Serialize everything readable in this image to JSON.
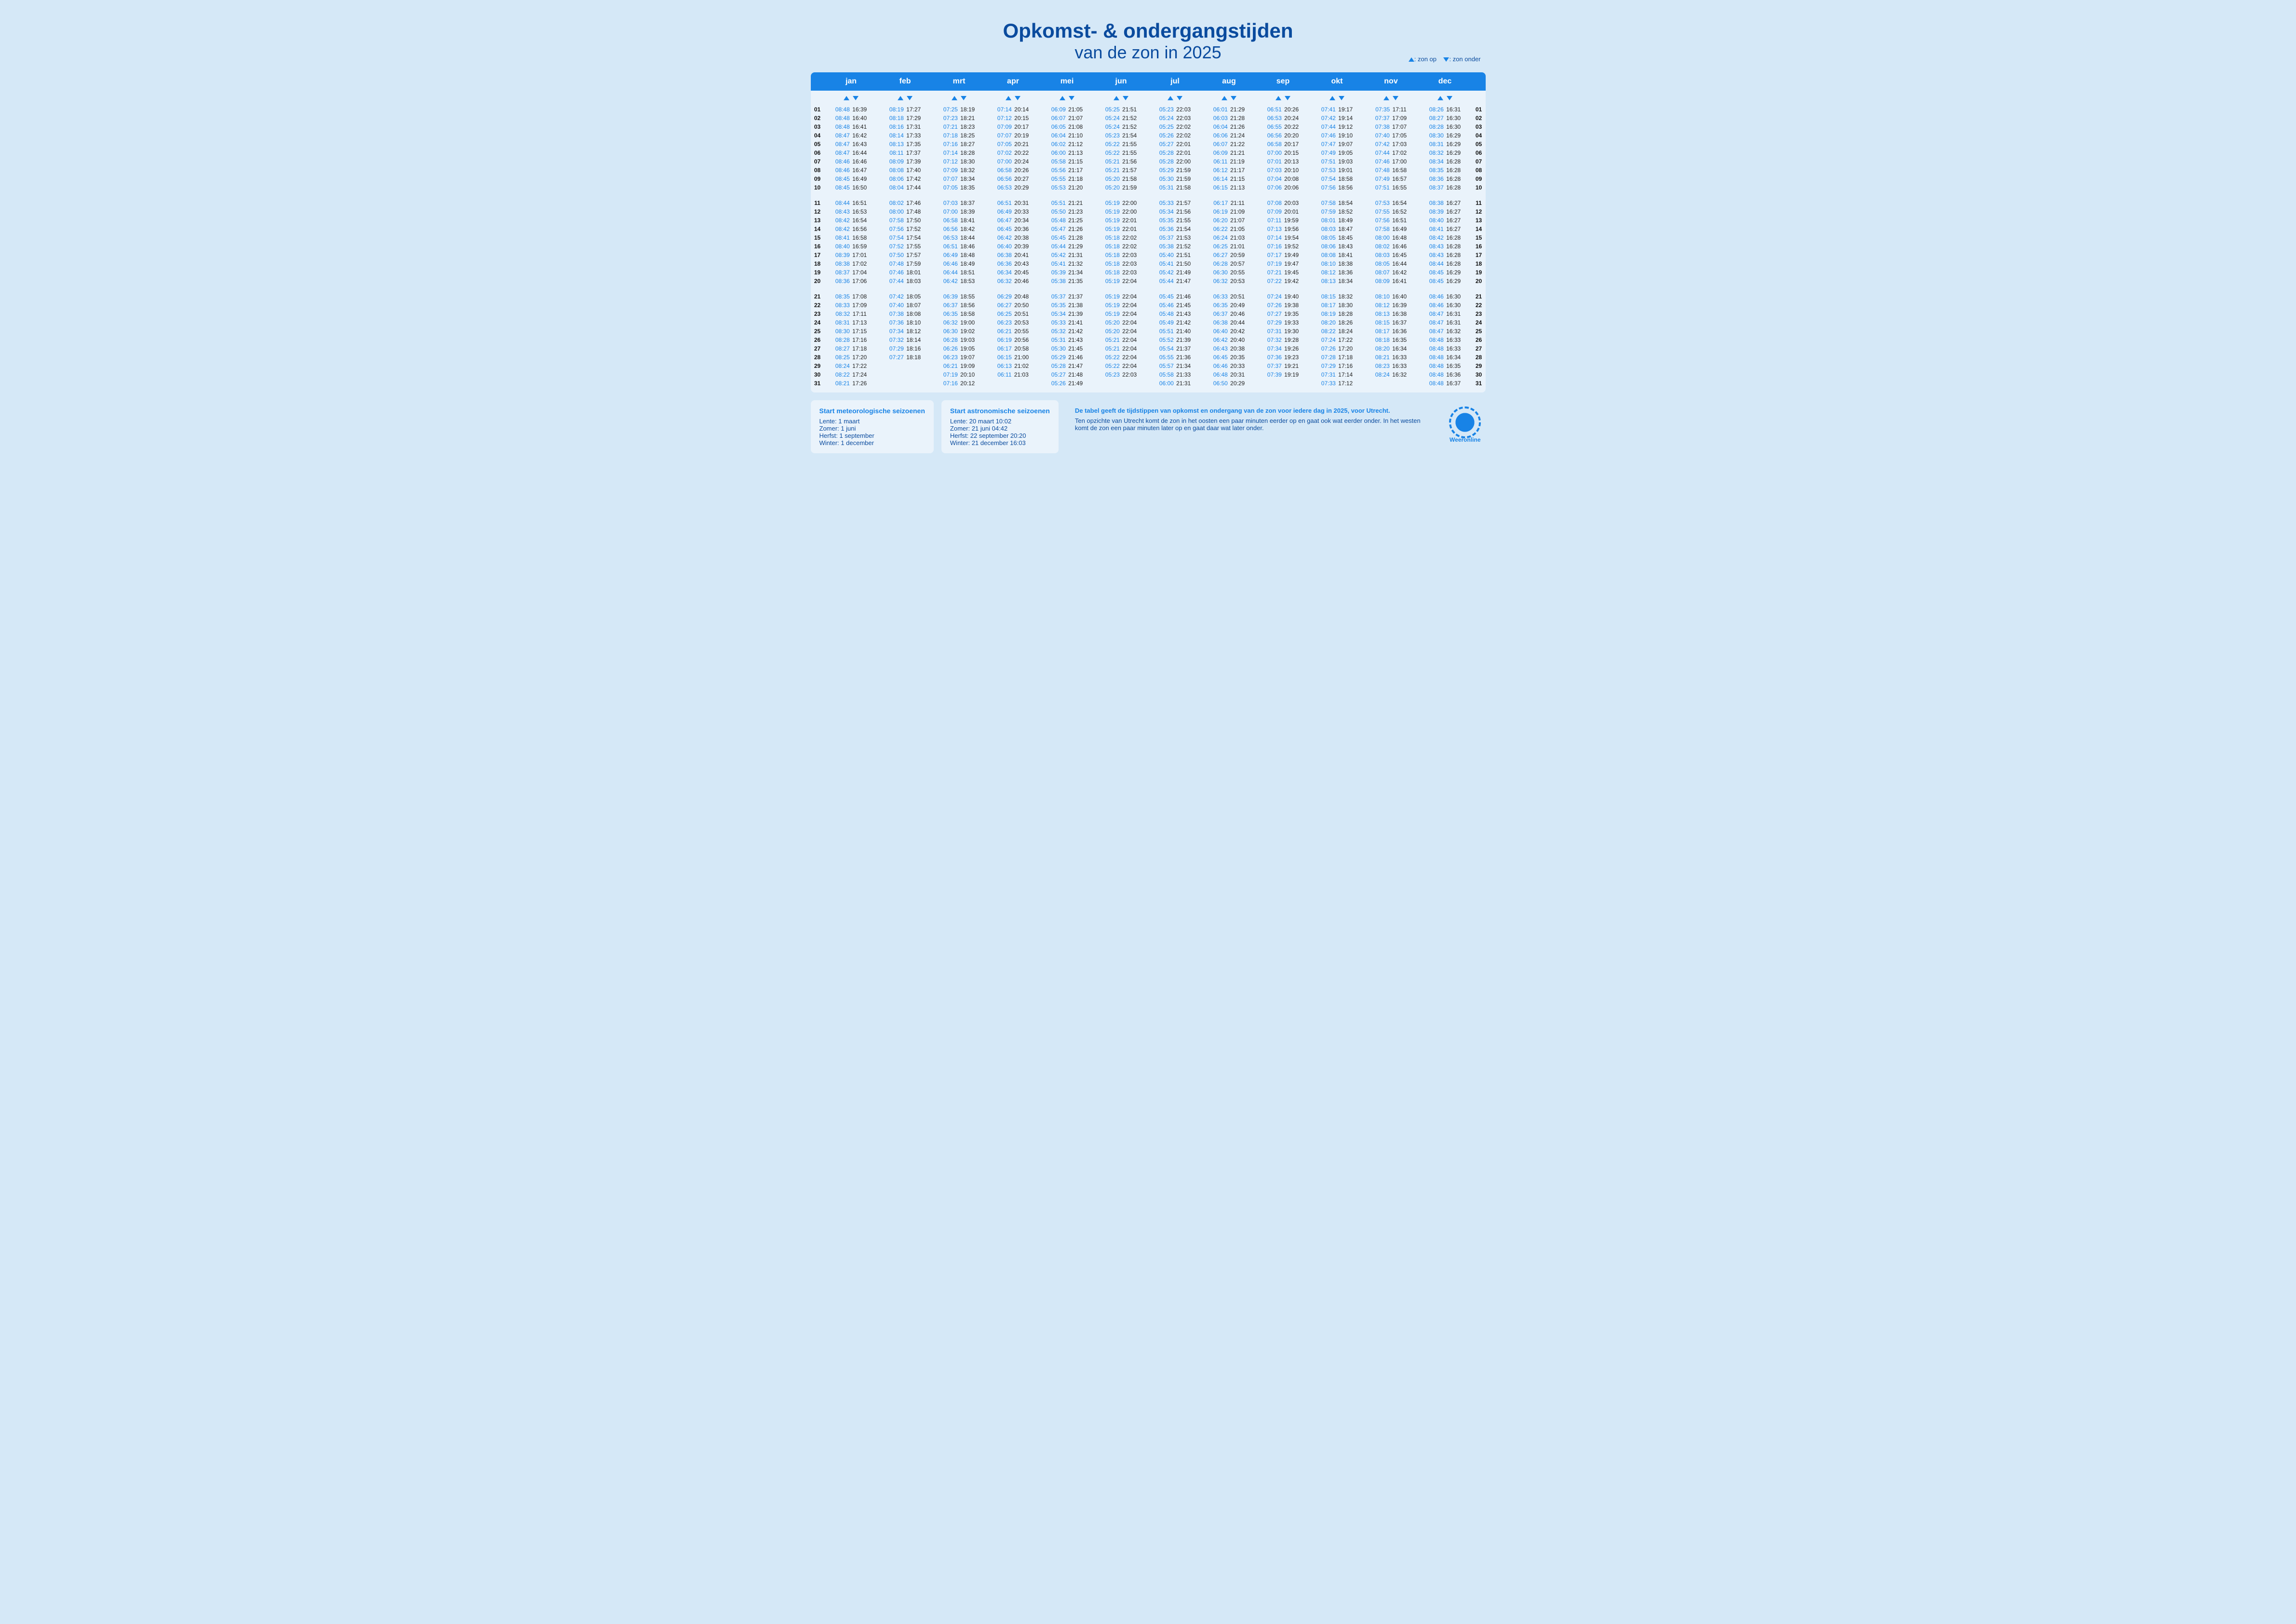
{
  "title_bold": "Opkomst- & ondergangstijden",
  "title_light": "van de zon in 2025",
  "legend_up": ": zon op",
  "legend_dn": ": zon onder",
  "months": [
    "jan",
    "feb",
    "mrt",
    "apr",
    "mei",
    "jun",
    "jul",
    "aug",
    "sep",
    "okt",
    "nov",
    "dec"
  ],
  "data": {
    "jan": [
      [
        "08:48",
        "16:39"
      ],
      [
        "08:48",
        "16:40"
      ],
      [
        "08:48",
        "16:41"
      ],
      [
        "08:47",
        "16:42"
      ],
      [
        "08:47",
        "16:43"
      ],
      [
        "08:47",
        "16:44"
      ],
      [
        "08:46",
        "16:46"
      ],
      [
        "08:46",
        "16:47"
      ],
      [
        "08:45",
        "16:49"
      ],
      [
        "08:45",
        "16:50"
      ],
      [
        "08:44",
        "16:51"
      ],
      [
        "08:43",
        "16:53"
      ],
      [
        "08:42",
        "16:54"
      ],
      [
        "08:42",
        "16:56"
      ],
      [
        "08:41",
        "16:58"
      ],
      [
        "08:40",
        "16:59"
      ],
      [
        "08:39",
        "17:01"
      ],
      [
        "08:38",
        "17:02"
      ],
      [
        "08:37",
        "17:04"
      ],
      [
        "08:36",
        "17:06"
      ],
      [
        "08:35",
        "17:08"
      ],
      [
        "08:33",
        "17:09"
      ],
      [
        "08:32",
        "17:11"
      ],
      [
        "08:31",
        "17:13"
      ],
      [
        "08:30",
        "17:15"
      ],
      [
        "08:28",
        "17:16"
      ],
      [
        "08:27",
        "17:18"
      ],
      [
        "08:25",
        "17:20"
      ],
      [
        "08:24",
        "17:22"
      ],
      [
        "08:22",
        "17:24"
      ],
      [
        "08:21",
        "17:26"
      ]
    ],
    "feb": [
      [
        "08:19",
        "17:27"
      ],
      [
        "08:18",
        "17:29"
      ],
      [
        "08:16",
        "17:31"
      ],
      [
        "08:14",
        "17:33"
      ],
      [
        "08:13",
        "17:35"
      ],
      [
        "08:11",
        "17:37"
      ],
      [
        "08:09",
        "17:39"
      ],
      [
        "08:08",
        "17:40"
      ],
      [
        "08:06",
        "17:42"
      ],
      [
        "08:04",
        "17:44"
      ],
      [
        "08:02",
        "17:46"
      ],
      [
        "08:00",
        "17:48"
      ],
      [
        "07:58",
        "17:50"
      ],
      [
        "07:56",
        "17:52"
      ],
      [
        "07:54",
        "17:54"
      ],
      [
        "07:52",
        "17:55"
      ],
      [
        "07:50",
        "17:57"
      ],
      [
        "07:48",
        "17:59"
      ],
      [
        "07:46",
        "18:01"
      ],
      [
        "07:44",
        "18:03"
      ],
      [
        "07:42",
        "18:05"
      ],
      [
        "07:40",
        "18:07"
      ],
      [
        "07:38",
        "18:08"
      ],
      [
        "07:36",
        "18:10"
      ],
      [
        "07:34",
        "18:12"
      ],
      [
        "07:32",
        "18:14"
      ],
      [
        "07:29",
        "18:16"
      ],
      [
        "07:27",
        "18:18"
      ]
    ],
    "mrt": [
      [
        "07:25",
        "18:19"
      ],
      [
        "07:23",
        "18:21"
      ],
      [
        "07:21",
        "18:23"
      ],
      [
        "07:18",
        "18:25"
      ],
      [
        "07:16",
        "18:27"
      ],
      [
        "07:14",
        "18:28"
      ],
      [
        "07:12",
        "18:30"
      ],
      [
        "07:09",
        "18:32"
      ],
      [
        "07:07",
        "18:34"
      ],
      [
        "07:05",
        "18:35"
      ],
      [
        "07:03",
        "18:37"
      ],
      [
        "07:00",
        "18:39"
      ],
      [
        "06:58",
        "18:41"
      ],
      [
        "06:56",
        "18:42"
      ],
      [
        "06:53",
        "18:44"
      ],
      [
        "06:51",
        "18:46"
      ],
      [
        "06:49",
        "18:48"
      ],
      [
        "06:46",
        "18:49"
      ],
      [
        "06:44",
        "18:51"
      ],
      [
        "06:42",
        "18:53"
      ],
      [
        "06:39",
        "18:55"
      ],
      [
        "06:37",
        "18:56"
      ],
      [
        "06:35",
        "18:58"
      ],
      [
        "06:32",
        "19:00"
      ],
      [
        "06:30",
        "19:02"
      ],
      [
        "06:28",
        "19:03"
      ],
      [
        "06:26",
        "19:05"
      ],
      [
        "06:23",
        "19:07"
      ],
      [
        "06:21",
        "19:09"
      ],
      [
        "07:19",
        "20:10"
      ],
      [
        "07:16",
        "20:12"
      ]
    ],
    "apr": [
      [
        "07:14",
        "20:14"
      ],
      [
        "07:12",
        "20:15"
      ],
      [
        "07:09",
        "20:17"
      ],
      [
        "07:07",
        "20:19"
      ],
      [
        "07:05",
        "20:21"
      ],
      [
        "07:02",
        "20:22"
      ],
      [
        "07:00",
        "20:24"
      ],
      [
        "06:58",
        "20:26"
      ],
      [
        "06:56",
        "20:27"
      ],
      [
        "06:53",
        "20:29"
      ],
      [
        "06:51",
        "20:31"
      ],
      [
        "06:49",
        "20:33"
      ],
      [
        "06:47",
        "20:34"
      ],
      [
        "06:45",
        "20:36"
      ],
      [
        "06:42",
        "20:38"
      ],
      [
        "06:40",
        "20:39"
      ],
      [
        "06:38",
        "20:41"
      ],
      [
        "06:36",
        "20:43"
      ],
      [
        "06:34",
        "20:45"
      ],
      [
        "06:32",
        "20:46"
      ],
      [
        "06:29",
        "20:48"
      ],
      [
        "06:27",
        "20:50"
      ],
      [
        "06:25",
        "20:51"
      ],
      [
        "06:23",
        "20:53"
      ],
      [
        "06:21",
        "20:55"
      ],
      [
        "06:19",
        "20:56"
      ],
      [
        "06:17",
        "20:58"
      ],
      [
        "06:15",
        "21:00"
      ],
      [
        "06:13",
        "21:02"
      ],
      [
        "06:11",
        "21:03"
      ]
    ],
    "mei": [
      [
        "06:09",
        "21:05"
      ],
      [
        "06:07",
        "21:07"
      ],
      [
        "06:05",
        "21:08"
      ],
      [
        "06:04",
        "21:10"
      ],
      [
        "06:02",
        "21:12"
      ],
      [
        "06:00",
        "21:13"
      ],
      [
        "05:58",
        "21:15"
      ],
      [
        "05:56",
        "21:17"
      ],
      [
        "05:55",
        "21:18"
      ],
      [
        "05:53",
        "21:20"
      ],
      [
        "05:51",
        "21:21"
      ],
      [
        "05:50",
        "21:23"
      ],
      [
        "05:48",
        "21:25"
      ],
      [
        "05:47",
        "21:26"
      ],
      [
        "05:45",
        "21:28"
      ],
      [
        "05:44",
        "21:29"
      ],
      [
        "05:42",
        "21:31"
      ],
      [
        "05:41",
        "21:32"
      ],
      [
        "05:39",
        "21:34"
      ],
      [
        "05:38",
        "21:35"
      ],
      [
        "05:37",
        "21:37"
      ],
      [
        "05:35",
        "21:38"
      ],
      [
        "05:34",
        "21:39"
      ],
      [
        "05:33",
        "21:41"
      ],
      [
        "05:32",
        "21:42"
      ],
      [
        "05:31",
        "21:43"
      ],
      [
        "05:30",
        "21:45"
      ],
      [
        "05:29",
        "21:46"
      ],
      [
        "05:28",
        "21:47"
      ],
      [
        "05:27",
        "21:48"
      ],
      [
        "05:26",
        "21:49"
      ]
    ],
    "jun": [
      [
        "05:25",
        "21:51"
      ],
      [
        "05:24",
        "21:52"
      ],
      [
        "05:24",
        "21:52"
      ],
      [
        "05:23",
        "21:54"
      ],
      [
        "05:22",
        "21:55"
      ],
      [
        "05:22",
        "21:55"
      ],
      [
        "05:21",
        "21:56"
      ],
      [
        "05:21",
        "21:57"
      ],
      [
        "05:20",
        "21:58"
      ],
      [
        "05:20",
        "21:59"
      ],
      [
        "05:19",
        "22:00"
      ],
      [
        "05:19",
        "22:00"
      ],
      [
        "05:19",
        "22:01"
      ],
      [
        "05:19",
        "22:01"
      ],
      [
        "05:18",
        "22:02"
      ],
      [
        "05:18",
        "22:02"
      ],
      [
        "05:18",
        "22:03"
      ],
      [
        "05:18",
        "22:03"
      ],
      [
        "05:18",
        "22:03"
      ],
      [
        "05:19",
        "22:04"
      ],
      [
        "05:19",
        "22:04"
      ],
      [
        "05:19",
        "22:04"
      ],
      [
        "05:19",
        "22:04"
      ],
      [
        "05:20",
        "22:04"
      ],
      [
        "05:20",
        "22:04"
      ],
      [
        "05:21",
        "22:04"
      ],
      [
        "05:21",
        "22:04"
      ],
      [
        "05:22",
        "22:04"
      ],
      [
        "05:22",
        "22:04"
      ],
      [
        "05:23",
        "22:03"
      ]
    ],
    "jul": [
      [
        "05:23",
        "22:03"
      ],
      [
        "05:24",
        "22:03"
      ],
      [
        "05:25",
        "22:02"
      ],
      [
        "05:26",
        "22:02"
      ],
      [
        "05:27",
        "22:01"
      ],
      [
        "05:28",
        "22:01"
      ],
      [
        "05:28",
        "22:00"
      ],
      [
        "05:29",
        "21:59"
      ],
      [
        "05:30",
        "21:59"
      ],
      [
        "05:31",
        "21:58"
      ],
      [
        "05:33",
        "21:57"
      ],
      [
        "05:34",
        "21:56"
      ],
      [
        "05:35",
        "21:55"
      ],
      [
        "05:36",
        "21:54"
      ],
      [
        "05:37",
        "21:53"
      ],
      [
        "05:38",
        "21:52"
      ],
      [
        "05:40",
        "21:51"
      ],
      [
        "05:41",
        "21:50"
      ],
      [
        "05:42",
        "21:49"
      ],
      [
        "05:44",
        "21:47"
      ],
      [
        "05:45",
        "21:46"
      ],
      [
        "05:46",
        "21:45"
      ],
      [
        "05:48",
        "21:43"
      ],
      [
        "05:49",
        "21:42"
      ],
      [
        "05:51",
        "21:40"
      ],
      [
        "05:52",
        "21:39"
      ],
      [
        "05:54",
        "21:37"
      ],
      [
        "05:55",
        "21:36"
      ],
      [
        "05:57",
        "21:34"
      ],
      [
        "05:58",
        "21:33"
      ],
      [
        "06:00",
        "21:31"
      ]
    ],
    "aug": [
      [
        "06:01",
        "21:29"
      ],
      [
        "06:03",
        "21:28"
      ],
      [
        "06:04",
        "21:26"
      ],
      [
        "06:06",
        "21:24"
      ],
      [
        "06:07",
        "21:22"
      ],
      [
        "06:09",
        "21:21"
      ],
      [
        "06:11",
        "21:19"
      ],
      [
        "06:12",
        "21:17"
      ],
      [
        "06:14",
        "21:15"
      ],
      [
        "06:15",
        "21:13"
      ],
      [
        "06:17",
        "21:11"
      ],
      [
        "06:19",
        "21:09"
      ],
      [
        "06:20",
        "21:07"
      ],
      [
        "06:22",
        "21:05"
      ],
      [
        "06:24",
        "21:03"
      ],
      [
        "06:25",
        "21:01"
      ],
      [
        "06:27",
        "20:59"
      ],
      [
        "06:28",
        "20:57"
      ],
      [
        "06:30",
        "20:55"
      ],
      [
        "06:32",
        "20:53"
      ],
      [
        "06:33",
        "20:51"
      ],
      [
        "06:35",
        "20:49"
      ],
      [
        "06:37",
        "20:46"
      ],
      [
        "06:38",
        "20:44"
      ],
      [
        "06:40",
        "20:42"
      ],
      [
        "06:42",
        "20:40"
      ],
      [
        "06:43",
        "20:38"
      ],
      [
        "06:45",
        "20:35"
      ],
      [
        "06:46",
        "20:33"
      ],
      [
        "06:48",
        "20:31"
      ],
      [
        "06:50",
        "20:29"
      ]
    ],
    "sep": [
      [
        "06:51",
        "20:26"
      ],
      [
        "06:53",
        "20:24"
      ],
      [
        "06:55",
        "20:22"
      ],
      [
        "06:56",
        "20:20"
      ],
      [
        "06:58",
        "20:17"
      ],
      [
        "07:00",
        "20:15"
      ],
      [
        "07:01",
        "20:13"
      ],
      [
        "07:03",
        "20:10"
      ],
      [
        "07:04",
        "20:08"
      ],
      [
        "07:06",
        "20:06"
      ],
      [
        "07:08",
        "20:03"
      ],
      [
        "07:09",
        "20:01"
      ],
      [
        "07:11",
        "19:59"
      ],
      [
        "07:13",
        "19:56"
      ],
      [
        "07:14",
        "19:54"
      ],
      [
        "07:16",
        "19:52"
      ],
      [
        "07:17",
        "19:49"
      ],
      [
        "07:19",
        "19:47"
      ],
      [
        "07:21",
        "19:45"
      ],
      [
        "07:22",
        "19:42"
      ],
      [
        "07:24",
        "19:40"
      ],
      [
        "07:26",
        "19:38"
      ],
      [
        "07:27",
        "19:35"
      ],
      [
        "07:29",
        "19:33"
      ],
      [
        "07:31",
        "19:30"
      ],
      [
        "07:32",
        "19:28"
      ],
      [
        "07:34",
        "19:26"
      ],
      [
        "07:36",
        "19:23"
      ],
      [
        "07:37",
        "19:21"
      ],
      [
        "07:39",
        "19:19"
      ]
    ],
    "okt": [
      [
        "07:41",
        "19:17"
      ],
      [
        "07:42",
        "19:14"
      ],
      [
        "07:44",
        "19:12"
      ],
      [
        "07:46",
        "19:10"
      ],
      [
        "07:47",
        "19:07"
      ],
      [
        "07:49",
        "19:05"
      ],
      [
        "07:51",
        "19:03"
      ],
      [
        "07:53",
        "19:01"
      ],
      [
        "07:54",
        "18:58"
      ],
      [
        "07:56",
        "18:56"
      ],
      [
        "07:58",
        "18:54"
      ],
      [
        "07:59",
        "18:52"
      ],
      [
        "08:01",
        "18:49"
      ],
      [
        "08:03",
        "18:47"
      ],
      [
        "08:05",
        "18:45"
      ],
      [
        "08:06",
        "18:43"
      ],
      [
        "08:08",
        "18:41"
      ],
      [
        "08:10",
        "18:38"
      ],
      [
        "08:12",
        "18:36"
      ],
      [
        "08:13",
        "18:34"
      ],
      [
        "08:15",
        "18:32"
      ],
      [
        "08:17",
        "18:30"
      ],
      [
        "08:19",
        "18:28"
      ],
      [
        "08:20",
        "18:26"
      ],
      [
        "08:22",
        "18:24"
      ],
      [
        "07:24",
        "17:22"
      ],
      [
        "07:26",
        "17:20"
      ],
      [
        "07:28",
        "17:18"
      ],
      [
        "07:29",
        "17:16"
      ],
      [
        "07:31",
        "17:14"
      ],
      [
        "07:33",
        "17:12"
      ]
    ],
    "nov": [
      [
        "07:35",
        "17:11"
      ],
      [
        "07:37",
        "17:09"
      ],
      [
        "07:38",
        "17:07"
      ],
      [
        "07:40",
        "17:05"
      ],
      [
        "07:42",
        "17:03"
      ],
      [
        "07:44",
        "17:02"
      ],
      [
        "07:46",
        "17:00"
      ],
      [
        "07:48",
        "16:58"
      ],
      [
        "07:49",
        "16:57"
      ],
      [
        "07:51",
        "16:55"
      ],
      [
        "07:53",
        "16:54"
      ],
      [
        "07:55",
        "16:52"
      ],
      [
        "07:56",
        "16:51"
      ],
      [
        "07:58",
        "16:49"
      ],
      [
        "08:00",
        "16:48"
      ],
      [
        "08:02",
        "16:46"
      ],
      [
        "08:03",
        "16:45"
      ],
      [
        "08:05",
        "16:44"
      ],
      [
        "08:07",
        "16:42"
      ],
      [
        "08:09",
        "16:41"
      ],
      [
        "08:10",
        "16:40"
      ],
      [
        "08:12",
        "16:39"
      ],
      [
        "08:13",
        "16:38"
      ],
      [
        "08:15",
        "16:37"
      ],
      [
        "08:17",
        "16:36"
      ],
      [
        "08:18",
        "16:35"
      ],
      [
        "08:20",
        "16:34"
      ],
      [
        "08:21",
        "16:33"
      ],
      [
        "08:23",
        "16:33"
      ],
      [
        "08:24",
        "16:32"
      ]
    ],
    "dec": [
      [
        "08:26",
        "16:31"
      ],
      [
        "08:27",
        "16:30"
      ],
      [
        "08:28",
        "16:30"
      ],
      [
        "08:30",
        "16:29"
      ],
      [
        "08:31",
        "16:29"
      ],
      [
        "08:32",
        "16:29"
      ],
      [
        "08:34",
        "16:28"
      ],
      [
        "08:35",
        "16:28"
      ],
      [
        "08:36",
        "16:28"
      ],
      [
        "08:37",
        "16:28"
      ],
      [
        "08:38",
        "16:27"
      ],
      [
        "08:39",
        "16:27"
      ],
      [
        "08:40",
        "16:27"
      ],
      [
        "08:41",
        "16:27"
      ],
      [
        "08:42",
        "16:28"
      ],
      [
        "08:43",
        "16:28"
      ],
      [
        "08:43",
        "16:28"
      ],
      [
        "08:44",
        "16:28"
      ],
      [
        "08:45",
        "16:29"
      ],
      [
        "08:45",
        "16:29"
      ],
      [
        "08:46",
        "16:30"
      ],
      [
        "08:46",
        "16:30"
      ],
      [
        "08:47",
        "16:31"
      ],
      [
        "08:47",
        "16:31"
      ],
      [
        "08:47",
        "16:32"
      ],
      [
        "08:48",
        "16:33"
      ],
      [
        "08:48",
        "16:33"
      ],
      [
        "08:48",
        "16:34"
      ],
      [
        "08:48",
        "16:35"
      ],
      [
        "08:48",
        "16:36"
      ],
      [
        "08:48",
        "16:37"
      ]
    ]
  },
  "footer": {
    "meteo_title": "Start meteorologische seizoenen",
    "meteo_lines": [
      "Lente: 1 maart",
      "Zomer: 1 juni",
      "Herfst: 1 september",
      "Winter: 1 december"
    ],
    "astro_title": "Start astronomische seizoenen",
    "astro_lines": [
      "Lente: 20 maart 10:02",
      "Zomer: 21 juni 04:42",
      "Herfst: 22 september 20:20",
      "Winter: 21 december 16:03"
    ],
    "info_lead": "De tabel geeft de tijdstippen van opkomst en ondergang van de zon voor iedere dag in 2025, voor Utrecht.",
    "info_body": "Ten opzichte van Utrecht komt de zon in het oosten een paar minuten eerder op en gaat ook wat eerder onder. In het westen komt de zon een paar minuten later op en gaat daar wat later onder.",
    "logo_text": "Weeronline"
  },
  "colors": {
    "accent": "#1883e6",
    "bg": "#d5e8f7",
    "panel": "#eaf3fb",
    "text_dark": "#0a4b9e"
  }
}
